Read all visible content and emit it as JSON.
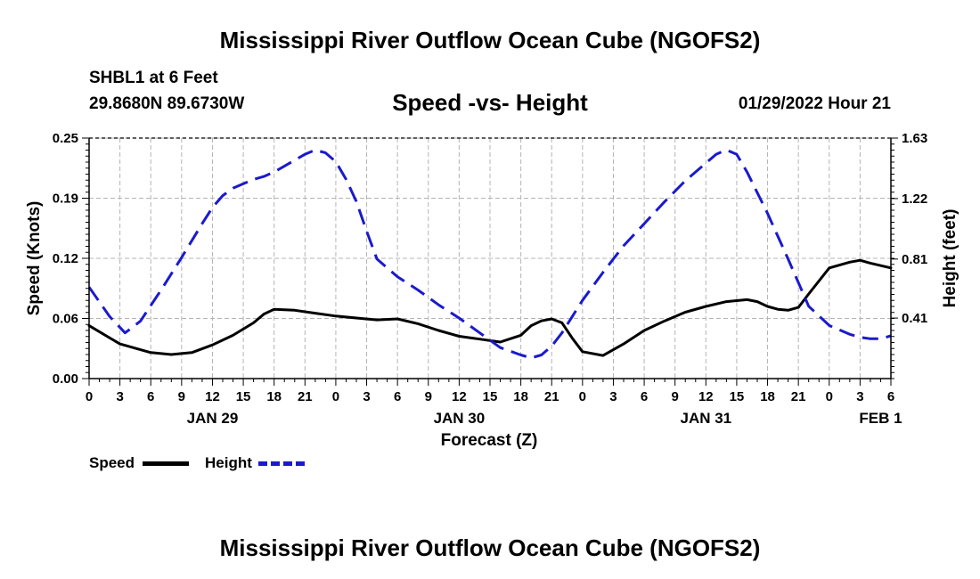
{
  "page": {
    "title": "Mississippi River Outflow Ocean Cube (NGOFS2)",
    "footer_title": "Mississippi River Outflow Ocean Cube (NGOFS2)",
    "station_line": "SHBL1 at 6 Feet",
    "coords_line": "29.8680N  89.6730W",
    "chart_title": "Speed -vs- Height",
    "timestamp": "01/29/2022 Hour 21"
  },
  "colors": {
    "speed": "#000000",
    "height": "#1a1acc",
    "grid": "#b4b4b4"
  },
  "chart_data": {
    "type": "line",
    "title": "Speed -vs- Height",
    "xlabel": "Forecast (Z)",
    "ylabel": "Speed (Knots)",
    "y2label": "Height (feet)",
    "xlim": [
      0,
      78
    ],
    "ylim": [
      0,
      0.25
    ],
    "y2lim": [
      0,
      1.63
    ],
    "x_ticks": [
      0,
      3,
      6,
      9,
      12,
      15,
      18,
      21,
      24,
      27,
      30,
      33,
      36,
      39,
      42,
      45,
      48,
      51,
      54,
      57,
      60,
      63,
      66,
      69,
      72,
      75,
      78
    ],
    "x_tick_labels": [
      "0",
      "3",
      "6",
      "9",
      "12",
      "15",
      "18",
      "21",
      "0",
      "3",
      "6",
      "9",
      "12",
      "15",
      "18",
      "21",
      "0",
      "3",
      "6",
      "9",
      "12",
      "15",
      "18",
      "21",
      "0",
      "3",
      "6"
    ],
    "y_ticks": [
      0,
      0.0625,
      0.125,
      0.1875,
      0.25
    ],
    "y_tick_labels": [
      "0.00",
      "0.06",
      "0.12",
      "0.19",
      "0.25"
    ],
    "y2_ticks": [
      0.41,
      0.81,
      1.22,
      1.63
    ],
    "y2_tick_labels": [
      "0.41",
      "0.81",
      "1.22",
      "1.63"
    ],
    "date_labels": [
      {
        "x": 12,
        "label": "JAN 29"
      },
      {
        "x": 36,
        "label": "JAN 30"
      },
      {
        "x": 60,
        "label": "JAN 31"
      },
      {
        "x": 77,
        "label": "FEB 1"
      }
    ],
    "series": [
      {
        "name": "Speed",
        "axis": "left",
        "style": "solid",
        "x": [
          0,
          3,
          6,
          8,
          10,
          12,
          14,
          16,
          17,
          18,
          20,
          22,
          24,
          26,
          28,
          30,
          32,
          34,
          36,
          38,
          40,
          42,
          43,
          44,
          45,
          46,
          47,
          48,
          50,
          52,
          54,
          56,
          58,
          60,
          62,
          64,
          65,
          66,
          67,
          68,
          69,
          70,
          72,
          74,
          75,
          76,
          78
        ],
        "values": [
          0.055,
          0.036,
          0.027,
          0.025,
          0.027,
          0.035,
          0.045,
          0.058,
          0.067,
          0.072,
          0.071,
          0.068,
          0.065,
          0.063,
          0.061,
          0.062,
          0.057,
          0.05,
          0.044,
          0.041,
          0.038,
          0.045,
          0.055,
          0.06,
          0.062,
          0.058,
          0.042,
          0.028,
          0.024,
          0.036,
          0.05,
          0.06,
          0.069,
          0.075,
          0.08,
          0.082,
          0.08,
          0.075,
          0.072,
          0.071,
          0.074,
          0.088,
          0.115,
          0.121,
          0.123,
          0.12,
          0.115
        ]
      },
      {
        "name": "Height",
        "axis": "right",
        "style": "dashed",
        "x": [
          0,
          2,
          3.5,
          5,
          7,
          9,
          11,
          12,
          13,
          14,
          15,
          16,
          17,
          18,
          20,
          21,
          22,
          23,
          24,
          25,
          26,
          27,
          28,
          30,
          32,
          34,
          36,
          38,
          40,
          42,
          43,
          44,
          45,
          46,
          47,
          48,
          50,
          52,
          54,
          56,
          58,
          60,
          61,
          62,
          63,
          64,
          66,
          68,
          69,
          70,
          72,
          74,
          75,
          76,
          77,
          78
        ],
        "values": [
          0.62,
          0.42,
          0.31,
          0.39,
          0.6,
          0.82,
          1.05,
          1.16,
          1.24,
          1.29,
          1.32,
          1.35,
          1.37,
          1.4,
          1.48,
          1.52,
          1.55,
          1.53,
          1.47,
          1.35,
          1.2,
          1.0,
          0.81,
          0.69,
          0.6,
          0.5,
          0.41,
          0.31,
          0.21,
          0.16,
          0.14,
          0.16,
          0.22,
          0.31,
          0.42,
          0.53,
          0.72,
          0.9,
          1.05,
          1.2,
          1.34,
          1.46,
          1.52,
          1.55,
          1.52,
          1.4,
          1.12,
          0.81,
          0.65,
          0.49,
          0.36,
          0.3,
          0.28,
          0.27,
          0.27,
          0.29
        ]
      }
    ]
  },
  "legend": {
    "speed_label": "Speed",
    "height_label": "Height"
  }
}
